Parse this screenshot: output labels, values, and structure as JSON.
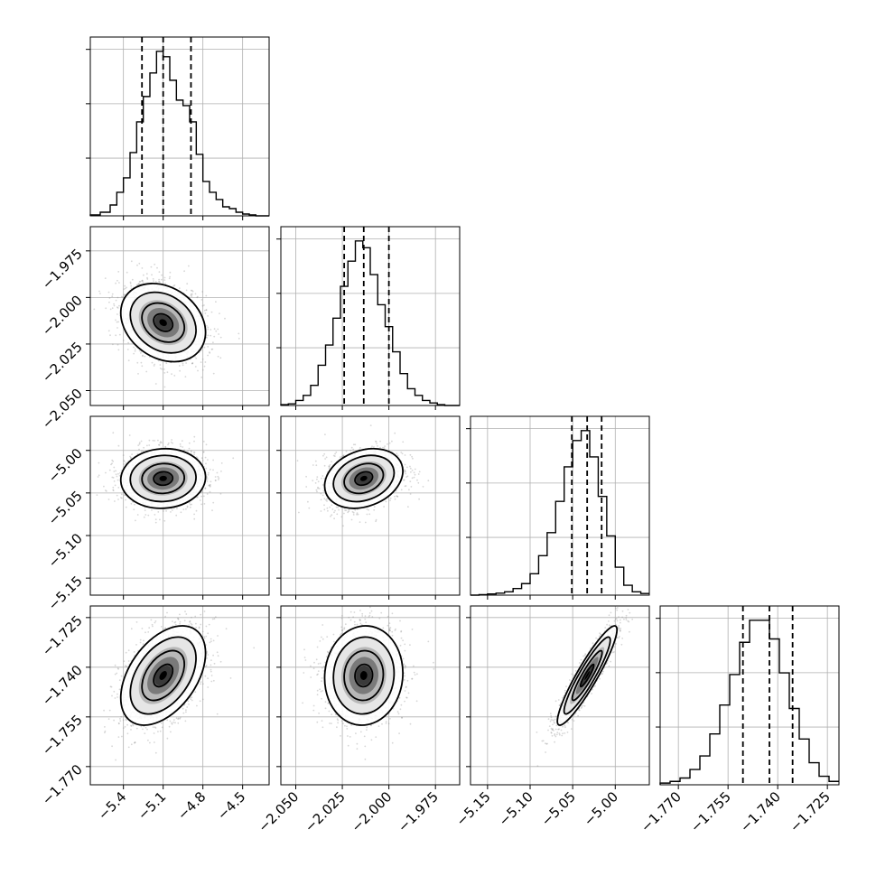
{
  "chart_data": {
    "type": "corner",
    "title": "",
    "quantiles": [
      0.16,
      0.5,
      0.84
    ],
    "grid": true,
    "parameters": [
      {
        "range": [
          -5.65,
          -4.3
        ],
        "ticks": [
          -5.4,
          -5.1,
          -4.8,
          -4.5
        ],
        "tick_labels": [
          "−5.4",
          "−5.1",
          "−4.8",
          "−4.5"
        ],
        "quantile_values": [
          -5.26,
          -5.1,
          -4.89
        ],
        "histogram": {
          "bin_edges": [
            -5.65,
            -5.575,
            -5.5,
            -5.45,
            -5.4,
            -5.35,
            -5.3,
            -5.25,
            -5.2,
            -5.15,
            -5.1,
            -5.05,
            -5.0,
            -4.95,
            -4.9,
            -4.85,
            -4.8,
            -4.75,
            -4.7,
            -4.65,
            -4.6,
            -4.55,
            -4.5,
            -4.45,
            -4.4,
            -4.3
          ],
          "counts": [
            0.5,
            2,
            6,
            13,
            21,
            35,
            52,
            66,
            79,
            91,
            88,
            75,
            64,
            61,
            52,
            34,
            19,
            13,
            9,
            5,
            4,
            2,
            1,
            0.5,
            0
          ]
        }
      },
      {
        "range": [
          -2.058,
          -1.962
        ],
        "ticks": [
          -2.05,
          -2.025,
          -2.0,
          -1.975
        ],
        "tick_labels": [
          "−2.050",
          "−2.025",
          "−2.000",
          "−1.975"
        ],
        "quantile_values": [
          -2.024,
          -2.0135,
          -2.0
        ],
        "histogram": {
          "bin_edges": [
            -2.058,
            -2.054,
            -2.05,
            -2.046,
            -2.042,
            -2.038,
            -2.034,
            -2.03,
            -2.026,
            -2.022,
            -2.018,
            -2.014,
            -2.01,
            -2.006,
            -2.002,
            -1.998,
            -1.994,
            -1.99,
            -1.986,
            -1.982,
            -1.978,
            -1.974,
            -1.97,
            -1.966,
            -1.962
          ],
          "counts": [
            0.5,
            1,
            3,
            6,
            12,
            24,
            36,
            52,
            71,
            86,
            98,
            94,
            78,
            60,
            47,
            32,
            19,
            10,
            6,
            3,
            1.5,
            0.5,
            0,
            0
          ]
        }
      },
      {
        "range": [
          -5.17,
          -4.96
        ],
        "ticks": [
          -5.15,
          -5.1,
          -5.05,
          -5.0
        ],
        "tick_labels": [
          "−5.15",
          "−5.10",
          "−5.05",
          "−5.00"
        ],
        "quantile_values": [
          -5.051,
          -5.033,
          -5.016
        ],
        "histogram": {
          "bin_edges": [
            -5.17,
            -5.16,
            -5.15,
            -5.14,
            -5.13,
            -5.12,
            -5.11,
            -5.1,
            -5.09,
            -5.08,
            -5.07,
            -5.06,
            -5.05,
            -5.04,
            -5.03,
            -5.02,
            -5.01,
            -5.0,
            -4.99,
            -4.98,
            -4.97,
            -4.96
          ],
          "counts": [
            0,
            0.3,
            0.7,
            1.2,
            2,
            4,
            7,
            13,
            24,
            38,
            57,
            78,
            94,
            100,
            84,
            60,
            36,
            17,
            6,
            2,
            1
          ]
        }
      },
      {
        "range": [
          -1.7755,
          -1.7215
        ],
        "ticks": [
          -1.77,
          -1.755,
          -1.74,
          -1.725
        ],
        "tick_labels": [
          "−1.770",
          "−1.755",
          "−1.740",
          "−1.725"
        ],
        "quantile_values": [
          -1.7505,
          -1.7425,
          -1.7355
        ],
        "histogram": {
          "bin_edges": [
            -1.7755,
            -1.7725,
            -1.7695,
            -1.7665,
            -1.7635,
            -1.7605,
            -1.7575,
            -1.7545,
            -1.7515,
            -1.7485,
            -1.7455,
            -1.7425,
            -1.7395,
            -1.7365,
            -1.7335,
            -1.7305,
            -1.7275,
            -1.7245,
            -1.7215
          ],
          "counts": [
            1,
            2,
            4,
            9,
            17,
            30,
            47,
            65,
            84,
            97,
            97,
            86,
            66,
            45,
            27,
            13,
            5,
            2
          ]
        }
      }
    ],
    "pairs": [
      {
        "x": 0,
        "y": 1,
        "x_mean": -5.1,
        "y_mean": -2.0135,
        "x_sd": 0.16,
        "y_sd": 0.0105,
        "rho": -0.25
      },
      {
        "x": 0,
        "y": 2,
        "x_mean": -5.1,
        "y_mean": -5.033,
        "x_sd": 0.16,
        "y_sd": 0.0175,
        "rho": 0.05
      },
      {
        "x": 1,
        "y": 2,
        "x_mean": -2.0135,
        "y_mean": -5.033,
        "x_sd": 0.0105,
        "y_sd": 0.0175,
        "rho": 0.25
      },
      {
        "x": 0,
        "y": 3,
        "x_mean": -5.1,
        "y_mean": -1.7425,
        "x_sd": 0.16,
        "y_sd": 0.0075,
        "rho": 0.45
      },
      {
        "x": 1,
        "y": 3,
        "x_mean": -2.0135,
        "y_mean": -1.7425,
        "x_sd": 0.0105,
        "y_sd": 0.0075,
        "rho": 0.05
      },
      {
        "x": 2,
        "y": 3,
        "x_mean": -5.033,
        "y_mean": -1.7425,
        "x_sd": 0.0175,
        "y_sd": 0.0075,
        "rho": 0.92
      }
    ],
    "colors": {
      "axes": "#000000",
      "grid": "#b0b0b0",
      "points": "#8c8c8c",
      "contour": "#000000",
      "density_fill_dark": "#000000"
    }
  }
}
